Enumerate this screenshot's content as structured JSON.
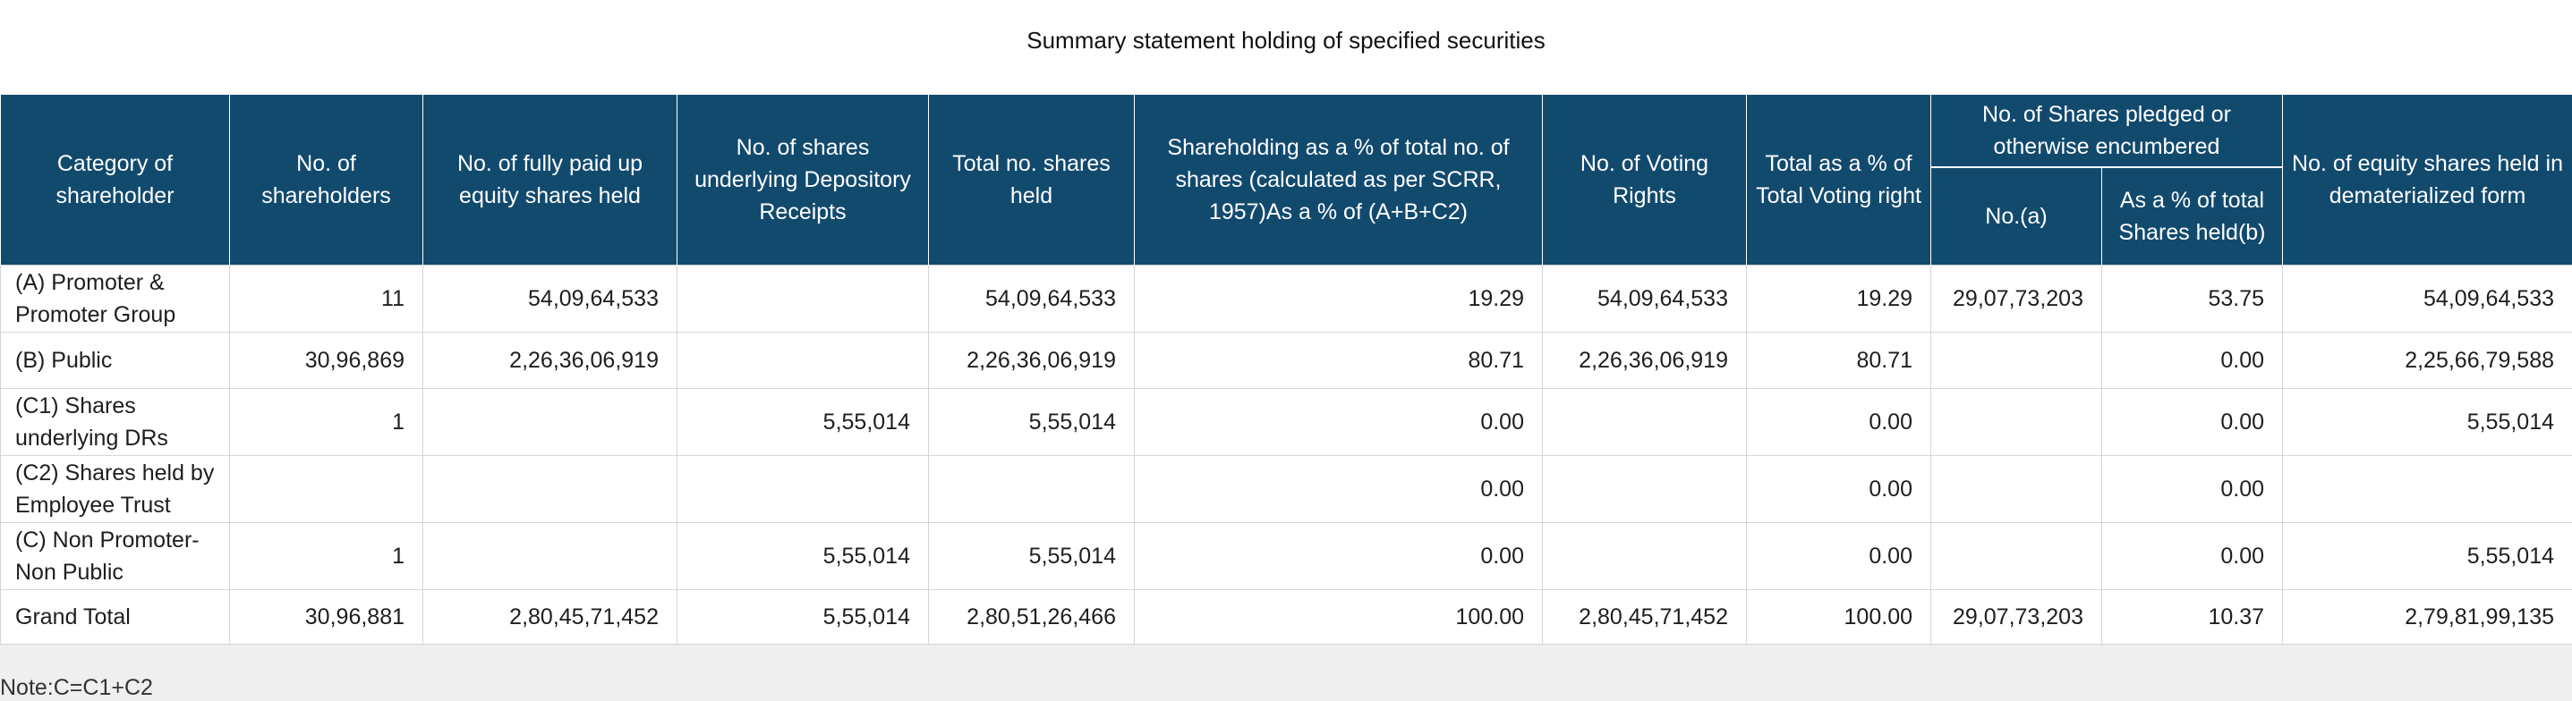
{
  "title": "Summary statement holding of specified securities",
  "columns": {
    "category": "Category of shareholder",
    "num_shareholders": "No. of shareholders",
    "fully_paid": "No. of fully paid up equity shares held",
    "depository": "No. of shares underlying Depository Receipts",
    "total_shares": "Total no. shares held",
    "shareholding_pct": "Shareholding as a % of total no. of shares (calculated as per SCRR, 1957)As a % of (A+B+C2)",
    "voting_rights": "No. of Voting Rights",
    "total_voting_pct": "Total as a % of Total Voting right",
    "pledged_group": "No. of Shares pledged or otherwise encumbered",
    "pledged_no": "No.(a)",
    "pledged_pct": "As a % of total Shares held(b)",
    "demat": "No. of equity shares held in dematerialized form"
  },
  "rows": [
    {
      "category": "(A) Promoter & Promoter Group",
      "num_shareholders": "11",
      "fully_paid": "54,09,64,533",
      "depository": "",
      "total_shares": "54,09,64,533",
      "shareholding_pct": "19.29",
      "voting_rights": "54,09,64,533",
      "total_voting_pct": "19.29",
      "pledged_no": "29,07,73,203",
      "pledged_pct": "53.75",
      "demat": "54,09,64,533"
    },
    {
      "category": "(B) Public",
      "num_shareholders": "30,96,869",
      "fully_paid": "2,26,36,06,919",
      "depository": "",
      "total_shares": "2,26,36,06,919",
      "shareholding_pct": "80.71",
      "voting_rights": "2,26,36,06,919",
      "total_voting_pct": "80.71",
      "pledged_no": "",
      "pledged_pct": "0.00",
      "demat": "2,25,66,79,588"
    },
    {
      "category": "(C1) Shares underlying DRs",
      "num_shareholders": "1",
      "fully_paid": "",
      "depository": "5,55,014",
      "total_shares": "5,55,014",
      "shareholding_pct": "0.00",
      "voting_rights": "",
      "total_voting_pct": "0.00",
      "pledged_no": "",
      "pledged_pct": "0.00",
      "demat": "5,55,014"
    },
    {
      "category": "(C2) Shares held by Employee Trust",
      "num_shareholders": "",
      "fully_paid": "",
      "depository": "",
      "total_shares": "",
      "shareholding_pct": "0.00",
      "voting_rights": "",
      "total_voting_pct": "0.00",
      "pledged_no": "",
      "pledged_pct": "0.00",
      "demat": ""
    },
    {
      "category": "(C) Non Promoter-Non Public",
      "num_shareholders": "1",
      "fully_paid": "",
      "depository": "5,55,014",
      "total_shares": "5,55,014",
      "shareholding_pct": "0.00",
      "voting_rights": "",
      "total_voting_pct": "0.00",
      "pledged_no": "",
      "pledged_pct": "0.00",
      "demat": "5,55,014"
    },
    {
      "category": "Grand Total",
      "num_shareholders": "30,96,881",
      "fully_paid": "2,80,45,71,452",
      "depository": "5,55,014",
      "total_shares": "2,80,51,26,466",
      "shareholding_pct": "100.00",
      "voting_rights": "2,80,45,71,452",
      "total_voting_pct": "100.00",
      "pledged_no": "29,07,73,203",
      "pledged_pct": "10.37",
      "demat": "2,79,81,99,135"
    }
  ],
  "note": "Note:C=C1+C2"
}
